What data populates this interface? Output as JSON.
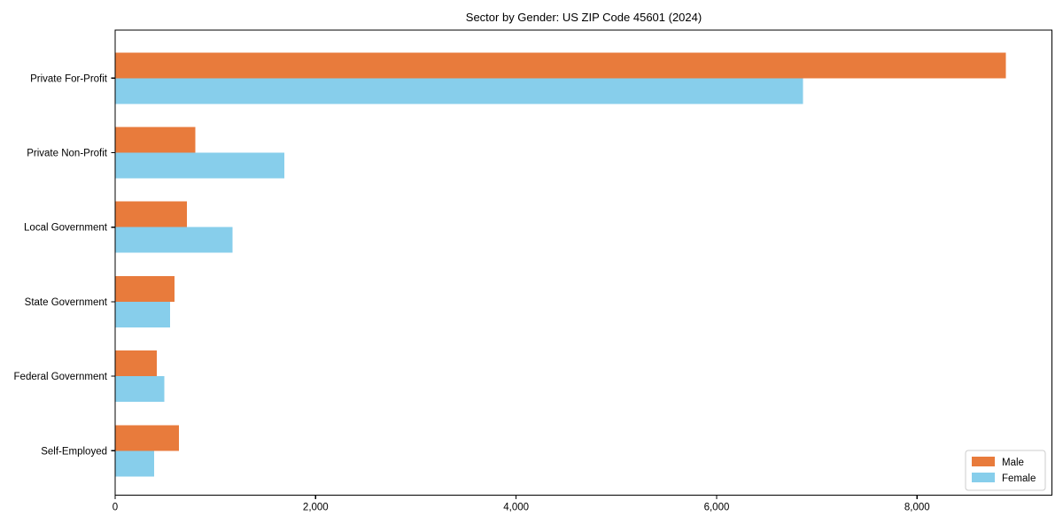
{
  "chart_data": {
    "type": "bar",
    "orientation": "horizontal",
    "title": "Sector by Gender: US ZIP Code 45601 (2024)",
    "categories": [
      "Private For-Profit",
      "Private Non-Profit",
      "Local Government",
      "State Government",
      "Federal Government",
      "Self-Employed"
    ],
    "series": [
      {
        "name": "Male",
        "color": "#E87B3C",
        "values": [
          8885,
          800,
          715,
          590,
          415,
          635
        ]
      },
      {
        "name": "Female",
        "color": "#87CEEB",
        "values": [
          6860,
          1690,
          1170,
          550,
          490,
          390
        ]
      }
    ],
    "xlabel": "",
    "ylabel": "",
    "xlim": [
      0,
      9345
    ],
    "xticks": {
      "values": [
        0,
        2000,
        4000,
        6000,
        8000
      ],
      "labels": [
        "0",
        "2,000",
        "4,000",
        "6,000",
        "8,000"
      ]
    },
    "legend": {
      "position": "lower right",
      "entries": [
        "Male",
        "Female"
      ],
      "border_color": "#cccccc",
      "background": "#ffffff"
    },
    "grid": false,
    "axis_color": "#000000",
    "background": "#ffffff"
  }
}
